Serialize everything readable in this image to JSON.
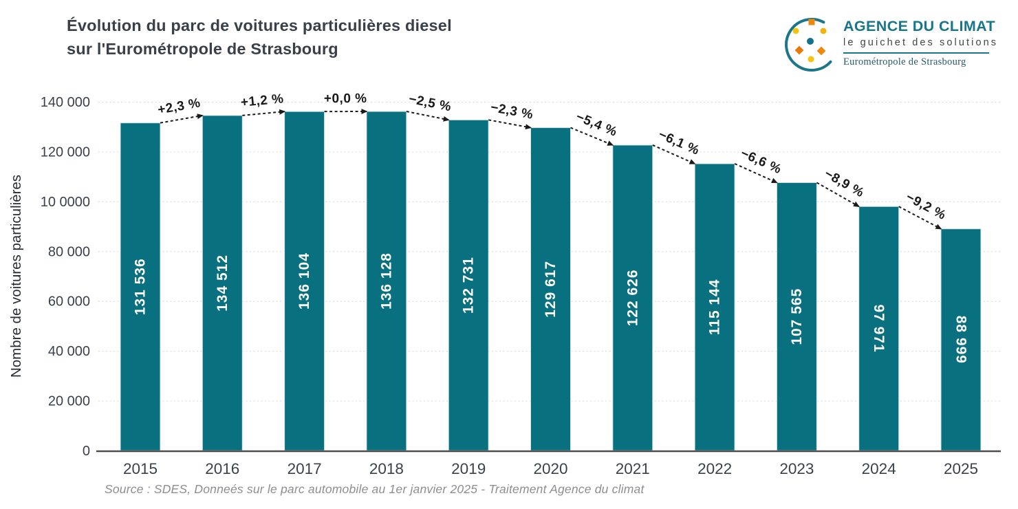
{
  "header": {
    "title_line1": "Évolution du parc de voitures particulières diesel",
    "title_line2": "sur l'Eurométropole de Strasbourg"
  },
  "logo": {
    "name": "AGENCE DU CLIMAT",
    "tagline": "le guichet des solutions",
    "subtitle": "Eurométropole de Strasbourg",
    "accent_teal": "#17768a",
    "accent_orange": "#ec880c",
    "accent_orange_dark": "#e8780b",
    "accent_yellow": "#f6c40e"
  },
  "chart_data": {
    "type": "bar",
    "title": "Évolution du parc de voitures particulières diesel sur l'Eurométropole de Strasbourg",
    "ylabel": "Nombre de voitures particulières",
    "xlabel": "",
    "categories": [
      "2015",
      "2016",
      "2017",
      "2018",
      "2019",
      "2020",
      "2021",
      "2022",
      "2023",
      "2024",
      "2025"
    ],
    "values": [
      131536,
      134512,
      136104,
      136128,
      132731,
      129617,
      122626,
      115144,
      107565,
      97971,
      88999
    ],
    "value_labels": [
      "131 536",
      "134 512",
      "136 104",
      "136 128",
      "132 731",
      "129 617",
      "122 626",
      "115 144",
      "107 565",
      "97 971",
      "88 999"
    ],
    "pct_change_labels": [
      "+2,3 %",
      "+1,2 %",
      "+0,0 %",
      "−2,5 %",
      "−2,3 %",
      "−5,4 %",
      "−6,1 %",
      "−6,6 %",
      "−8,9 %",
      "−9,2 %"
    ],
    "ylim": [
      0,
      140000
    ],
    "ytick_values": [
      0,
      20000,
      40000,
      60000,
      80000,
      100000,
      120000,
      140000
    ],
    "ytick_labels": [
      "0",
      "20 000",
      "40 000",
      "60 000",
      "80 000",
      "10 0000",
      "120 000",
      "140 000"
    ],
    "grid": true,
    "legend": false,
    "bar_color": "#08707f",
    "bar_edge_color": "#d7e7ea",
    "axis_color": "#4d4d4d",
    "grid_color": "#dcdcdc",
    "arrow_color": "#1b1b1b",
    "tick_label_color": "#3a414c",
    "bar_label_color": "#ffffff"
  },
  "footer": {
    "source": "Source : SDES, Donneés sur le parc automobile au 1er janvier 2025 - Traitement Agence du climat"
  }
}
